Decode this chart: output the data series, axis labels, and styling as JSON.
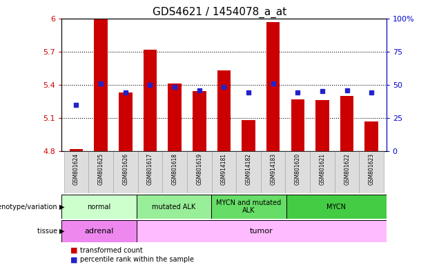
{
  "title": "GDS4621 / 1454078_a_at",
  "samples": [
    "GSM801624",
    "GSM801625",
    "GSM801626",
    "GSM801617",
    "GSM801618",
    "GSM801619",
    "GSM914181",
    "GSM914182",
    "GSM914183",
    "GSM801620",
    "GSM801621",
    "GSM801622",
    "GSM801623"
  ],
  "bar_values": [
    4.82,
    6.0,
    5.33,
    5.72,
    5.41,
    5.34,
    5.53,
    5.08,
    5.97,
    5.27,
    5.26,
    5.3,
    5.07
  ],
  "dot_values": [
    5.22,
    5.41,
    5.33,
    5.4,
    5.38,
    5.35,
    5.38,
    5.33,
    5.41,
    5.33,
    5.34,
    5.35,
    5.33
  ],
  "ylim_left": [
    4.8,
    6.0
  ],
  "ylim_right": [
    0,
    100
  ],
  "yticks_left": [
    4.8,
    5.1,
    5.4,
    5.7,
    6.0
  ],
  "yticks_right": [
    0,
    25,
    50,
    75,
    100
  ],
  "ytick_labels_left": [
    "4.8",
    "5.1",
    "5.4",
    "5.7",
    "6"
  ],
  "ytick_labels_right": [
    "0",
    "25",
    "50",
    "75",
    "100%"
  ],
  "bar_color": "#cc0000",
  "dot_color": "#2222cc",
  "baseline": 4.8,
  "groups": [
    {
      "label": "normal",
      "start": 0,
      "end": 3,
      "color": "#ccffcc"
    },
    {
      "label": "mutated ALK",
      "start": 3,
      "end": 6,
      "color": "#99ee99"
    },
    {
      "label": "MYCN and mutated\nALK",
      "start": 6,
      "end": 9,
      "color": "#66dd66"
    },
    {
      "label": "MYCN",
      "start": 9,
      "end": 13,
      "color": "#44cc44"
    }
  ],
  "tissues": [
    {
      "label": "adrenal",
      "start": 0,
      "end": 3,
      "color": "#ee88ee"
    },
    {
      "label": "tumor",
      "start": 3,
      "end": 13,
      "color": "#ffbbff"
    }
  ],
  "legend_bar_label": "transformed count",
  "legend_dot_label": "percentile rank within the sample",
  "xlabel_genotype": "genotype/variation",
  "xlabel_tissue": "tissue",
  "bar_width": 0.55,
  "grid_linestyle": "dotted",
  "tick_color_left": "#cc0000",
  "tick_color_right": "#0000cc",
  "sample_bg_color": "#dddddd",
  "sample_bg_edge": "#aaaaaa"
}
